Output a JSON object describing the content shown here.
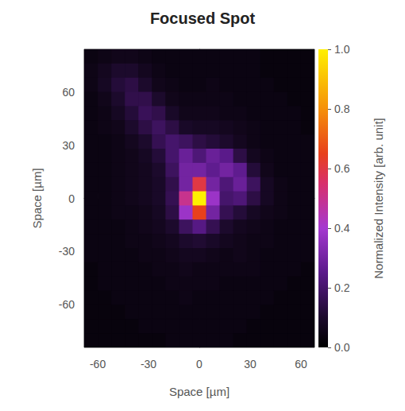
{
  "chart_data": {
    "type": "heatmap",
    "title": "Focused Spot",
    "x_label": "Space [µm]",
    "y_label": "Space [µm]",
    "x": [
      -64,
      -56,
      -48,
      -40,
      -32,
      -24,
      -16,
      -8,
      0,
      8,
      16,
      24,
      32,
      40,
      48,
      56,
      64
    ],
    "y": [
      80,
      72,
      64,
      56,
      48,
      40,
      32,
      24,
      16,
      8,
      0,
      -8,
      -16,
      -24,
      -32,
      -40,
      -48,
      -56,
      -64,
      -72,
      -80
    ],
    "values": [
      [
        0.04,
        0.05,
        0.06,
        0.06,
        0.05,
        0.04,
        0.04,
        0.04,
        0.04,
        0.04,
        0.04,
        0.04,
        0.04,
        0.03,
        0.03,
        0.03,
        0.03
      ],
      [
        0.05,
        0.07,
        0.1,
        0.1,
        0.07,
        0.05,
        0.04,
        0.04,
        0.04,
        0.04,
        0.04,
        0.04,
        0.04,
        0.03,
        0.03,
        0.03,
        0.03
      ],
      [
        0.05,
        0.08,
        0.12,
        0.14,
        0.1,
        0.06,
        0.05,
        0.04,
        0.04,
        0.05,
        0.04,
        0.04,
        0.04,
        0.04,
        0.03,
        0.03,
        0.03
      ],
      [
        0.04,
        0.06,
        0.1,
        0.15,
        0.15,
        0.1,
        0.06,
        0.05,
        0.05,
        0.05,
        0.05,
        0.04,
        0.04,
        0.04,
        0.04,
        0.03,
        0.03
      ],
      [
        0.04,
        0.05,
        0.08,
        0.12,
        0.17,
        0.15,
        0.09,
        0.06,
        0.06,
        0.06,
        0.05,
        0.05,
        0.04,
        0.04,
        0.04,
        0.04,
        0.03
      ],
      [
        0.04,
        0.05,
        0.06,
        0.1,
        0.14,
        0.18,
        0.14,
        0.09,
        0.08,
        0.08,
        0.07,
        0.06,
        0.05,
        0.04,
        0.04,
        0.04,
        0.03
      ],
      [
        0.04,
        0.04,
        0.05,
        0.07,
        0.1,
        0.16,
        0.2,
        0.18,
        0.14,
        0.12,
        0.1,
        0.07,
        0.05,
        0.04,
        0.04,
        0.04,
        0.04
      ],
      [
        0.04,
        0.04,
        0.05,
        0.06,
        0.08,
        0.12,
        0.2,
        0.28,
        0.22,
        0.28,
        0.25,
        0.14,
        0.07,
        0.05,
        0.04,
        0.04,
        0.04
      ],
      [
        0.04,
        0.04,
        0.05,
        0.06,
        0.07,
        0.1,
        0.18,
        0.3,
        0.3,
        0.26,
        0.3,
        0.26,
        0.12,
        0.06,
        0.04,
        0.04,
        0.04
      ],
      [
        0.04,
        0.04,
        0.05,
        0.06,
        0.07,
        0.09,
        0.15,
        0.3,
        0.6,
        0.3,
        0.22,
        0.28,
        0.18,
        0.08,
        0.05,
        0.04,
        0.04
      ],
      [
        0.04,
        0.04,
        0.05,
        0.06,
        0.07,
        0.09,
        0.16,
        0.5,
        1.0,
        0.38,
        0.2,
        0.22,
        0.14,
        0.08,
        0.05,
        0.04,
        0.04
      ],
      [
        0.04,
        0.04,
        0.05,
        0.05,
        0.06,
        0.08,
        0.14,
        0.38,
        0.65,
        0.3,
        0.16,
        0.12,
        0.08,
        0.06,
        0.05,
        0.04,
        0.04
      ],
      [
        0.04,
        0.04,
        0.04,
        0.05,
        0.06,
        0.07,
        0.1,
        0.18,
        0.24,
        0.16,
        0.1,
        0.07,
        0.06,
        0.05,
        0.04,
        0.04,
        0.04
      ],
      [
        0.04,
        0.04,
        0.04,
        0.05,
        0.05,
        0.06,
        0.07,
        0.1,
        0.11,
        0.09,
        0.07,
        0.06,
        0.05,
        0.05,
        0.04,
        0.04,
        0.04
      ],
      [
        0.04,
        0.04,
        0.04,
        0.04,
        0.05,
        0.05,
        0.06,
        0.07,
        0.07,
        0.06,
        0.05,
        0.06,
        0.05,
        0.04,
        0.04,
        0.04,
        0.04
      ],
      [
        0.03,
        0.04,
        0.04,
        0.04,
        0.04,
        0.05,
        0.05,
        0.06,
        0.05,
        0.05,
        0.05,
        0.05,
        0.05,
        0.04,
        0.04,
        0.04,
        0.03
      ],
      [
        0.03,
        0.04,
        0.04,
        0.04,
        0.04,
        0.04,
        0.05,
        0.05,
        0.05,
        0.05,
        0.04,
        0.04,
        0.04,
        0.04,
        0.04,
        0.03,
        0.03
      ],
      [
        0.03,
        0.03,
        0.04,
        0.04,
        0.04,
        0.04,
        0.04,
        0.05,
        0.04,
        0.04,
        0.04,
        0.04,
        0.04,
        0.04,
        0.03,
        0.03,
        0.03
      ],
      [
        0.03,
        0.03,
        0.03,
        0.04,
        0.04,
        0.04,
        0.04,
        0.04,
        0.04,
        0.04,
        0.04,
        0.04,
        0.04,
        0.03,
        0.03,
        0.03,
        0.03
      ],
      [
        0.03,
        0.03,
        0.03,
        0.03,
        0.04,
        0.04,
        0.04,
        0.04,
        0.04,
        0.04,
        0.04,
        0.04,
        0.03,
        0.03,
        0.03,
        0.03,
        0.03
      ],
      [
        0.03,
        0.03,
        0.03,
        0.03,
        0.03,
        0.03,
        0.04,
        0.04,
        0.04,
        0.04,
        0.04,
        0.03,
        0.03,
        0.03,
        0.03,
        0.03,
        0.03
      ]
    ],
    "xlim": [
      -68,
      68
    ],
    "xticks": [
      -60,
      -30,
      0,
      30,
      60
    ],
    "ylim": [
      -84,
      84
    ],
    "yticks": [
      -60,
      -30,
      0,
      30,
      60
    ],
    "colorbar": {
      "label": "Normalized Intensity [arb. unit]",
      "range": [
        0,
        1
      ],
      "ticks": [
        {
          "value": 0,
          "label": "0.0"
        },
        0.2,
        0.4,
        0.6,
        0.8,
        {
          "value": 1,
          "label": "1.0"
        }
      ]
    },
    "grid": false
  }
}
